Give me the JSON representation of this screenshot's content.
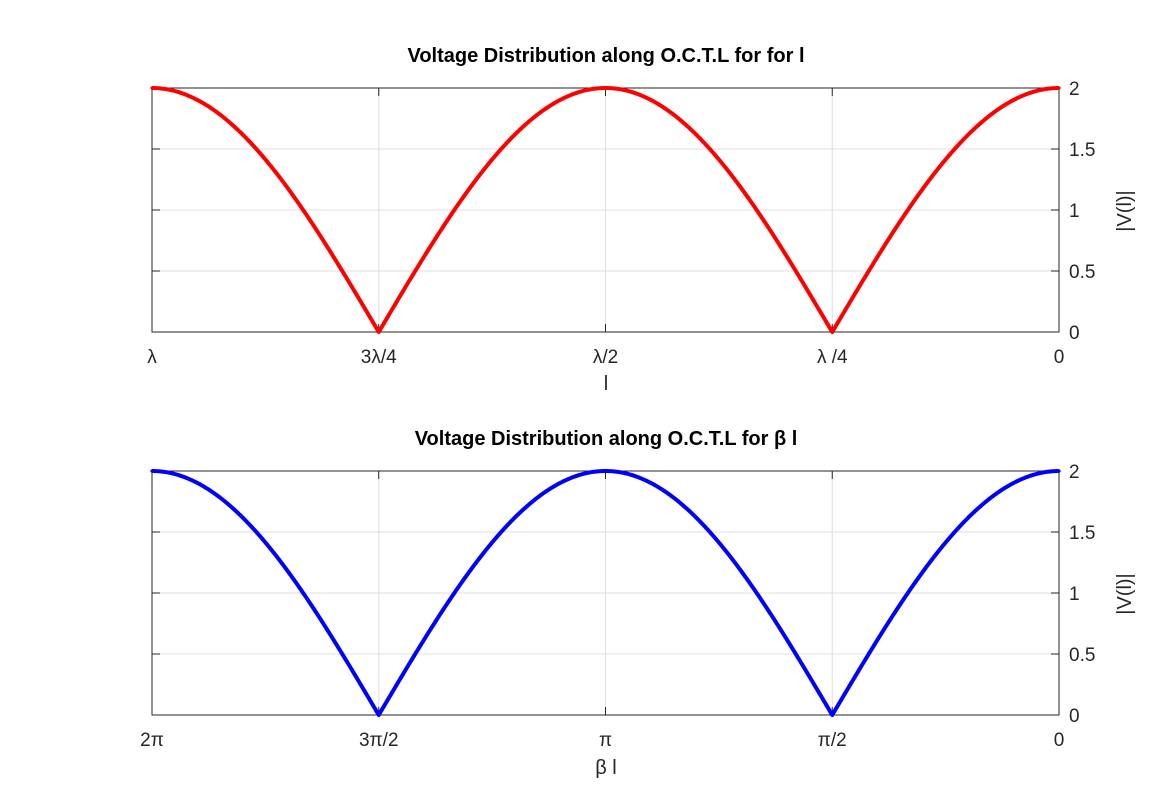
{
  "chart_data": [
    {
      "type": "line",
      "title": "Voltage Distribution along O.C.T.L for for l",
      "xlabel": "l",
      "ylabel": "|V(l)|",
      "x_reversed": true,
      "xlim": [
        0,
        1
      ],
      "x_unit": "wavelength λ",
      "xticks": [
        1,
        0.75,
        0.5,
        0.25,
        0
      ],
      "xticklabels": [
        "λ",
        "3λ/4",
        "λ/2",
        "λ /4",
        "0"
      ],
      "ylim": [
        0,
        2
      ],
      "yticks": [
        0,
        0.5,
        1,
        1.5,
        2
      ],
      "yticklabels": [
        "0",
        "0.5",
        "1",
        "1.5",
        "2"
      ],
      "y_axis_location": "right",
      "grid": true,
      "series": [
        {
          "color": "#ff0000",
          "x": [
            0,
            0.05,
            0.1,
            0.15,
            0.2,
            0.25,
            0.3,
            0.35,
            0.4,
            0.45,
            0.5,
            0.55,
            0.6,
            0.65,
            0.7,
            0.75,
            0.8,
            0.85,
            0.9,
            0.95,
            1
          ],
          "values": [
            2,
            1.902,
            1.618,
            1.176,
            0.618,
            0,
            0.618,
            1.176,
            1.618,
            1.902,
            2,
            1.902,
            1.618,
            1.176,
            0.618,
            0,
            0.618,
            1.176,
            1.618,
            1.902,
            2
          ]
        }
      ]
    },
    {
      "type": "line",
      "title": "Voltage Distribution along O.C.T.L for β l",
      "xlabel": "β l",
      "ylabel": "|V(l)|",
      "x_reversed": true,
      "xlim": [
        0,
        6.2832
      ],
      "x_unit": "radians",
      "xticks": [
        6.2832,
        4.7124,
        3.1416,
        1.5708,
        0
      ],
      "xticklabels": [
        "2π",
        "3π/2",
        "π",
        "π/2",
        "0"
      ],
      "ylim": [
        0,
        2
      ],
      "yticks": [
        0,
        0.5,
        1,
        1.5,
        2
      ],
      "yticklabels": [
        "0",
        "0.5",
        "1",
        "1.5",
        "2"
      ],
      "y_axis_location": "right",
      "grid": true,
      "series": [
        {
          "color": "#0000ff",
          "x": [
            0,
            0.3142,
            0.6283,
            0.9425,
            1.2566,
            1.5708,
            1.885,
            2.1991,
            2.5133,
            2.8274,
            3.1416,
            3.4558,
            3.7699,
            4.0841,
            4.3982,
            4.7124,
            5.0265,
            5.3407,
            5.6549,
            5.969,
            6.2832
          ],
          "values": [
            2,
            1.902,
            1.618,
            1.176,
            0.618,
            0,
            0.618,
            1.176,
            1.618,
            1.902,
            2,
            1.902,
            1.618,
            1.176,
            0.618,
            0,
            0.618,
            1.176,
            1.618,
            1.902,
            2
          ]
        }
      ]
    }
  ]
}
